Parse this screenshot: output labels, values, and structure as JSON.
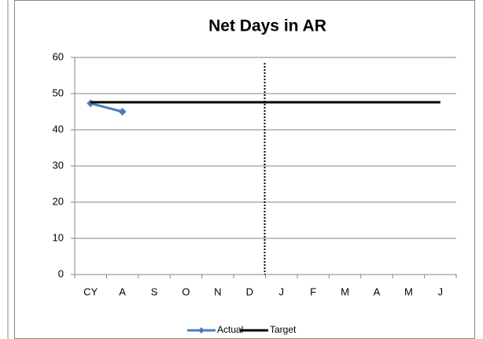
{
  "chart_data": {
    "type": "line",
    "title": "Net Days in AR",
    "categories": [
      "CY",
      "A",
      "S",
      "O",
      "N",
      "D",
      "J",
      "F",
      "M",
      "A",
      "M",
      "J"
    ],
    "series": [
      {
        "name": "Actual",
        "color": "#4a7ebb",
        "values": [
          47.3,
          45,
          null,
          null,
          null,
          null,
          null,
          null,
          null,
          null,
          null,
          null
        ]
      },
      {
        "name": "Target",
        "color": "#000000",
        "values": [
          47.6,
          47.6,
          47.6,
          47.6,
          47.6,
          47.6,
          47.6,
          47.6,
          47.6,
          47.6,
          47.6,
          47.6
        ]
      }
    ],
    "ylim": [
      0,
      60
    ],
    "yticks": [
      0,
      10,
      20,
      30,
      40,
      50,
      60
    ],
    "grid": true,
    "legend": "bottom"
  }
}
